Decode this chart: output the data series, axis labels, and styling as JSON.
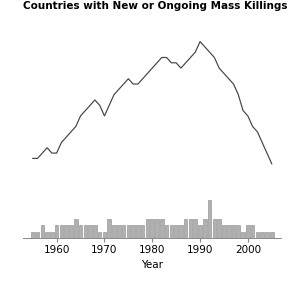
{
  "years": [
    1955,
    1956,
    1957,
    1958,
    1959,
    1960,
    1961,
    1962,
    1963,
    1964,
    1965,
    1966,
    1967,
    1968,
    1969,
    1970,
    1971,
    1972,
    1973,
    1974,
    1975,
    1976,
    1977,
    1978,
    1979,
    1980,
    1981,
    1982,
    1983,
    1984,
    1985,
    1986,
    1987,
    1988,
    1989,
    1990,
    1991,
    1992,
    1993,
    1994,
    1995,
    1996,
    1997,
    1998,
    1999,
    2000,
    2001,
    2002,
    2003,
    2004,
    2005
  ],
  "ongoing": [
    4,
    4,
    5,
    6,
    5,
    5,
    7,
    8,
    9,
    10,
    12,
    13,
    14,
    15,
    14,
    12,
    14,
    16,
    17,
    18,
    19,
    18,
    18,
    19,
    20,
    21,
    22,
    23,
    23,
    22,
    22,
    21,
    22,
    23,
    24,
    26,
    25,
    24,
    23,
    21,
    20,
    19,
    18,
    16,
    13,
    12,
    10,
    9,
    7,
    5,
    3
  ],
  "new_onsets": [
    1,
    1,
    2,
    1,
    1,
    2,
    2,
    2,
    2,
    3,
    2,
    2,
    2,
    2,
    1,
    1,
    3,
    2,
    2,
    2,
    2,
    2,
    2,
    2,
    3,
    3,
    3,
    3,
    2,
    2,
    2,
    2,
    3,
    3,
    3,
    2,
    3,
    6,
    3,
    3,
    2,
    2,
    2,
    2,
    1,
    2,
    2,
    1,
    1,
    1,
    1
  ],
  "title": "Countries with New or Ongoing Mass Killings by Year",
  "xlabel": "Year",
  "line_color": "#444444",
  "bar_color": "#b0b0b0",
  "bar_edge_color": "#888888",
  "title_fontsize": 7.5,
  "axis_fontsize": 7.5,
  "tick_fontsize": 7.5,
  "xlim": [
    1953,
    2007
  ],
  "line_ylim": [
    0,
    30
  ],
  "bar_ylim": [
    0,
    8
  ]
}
